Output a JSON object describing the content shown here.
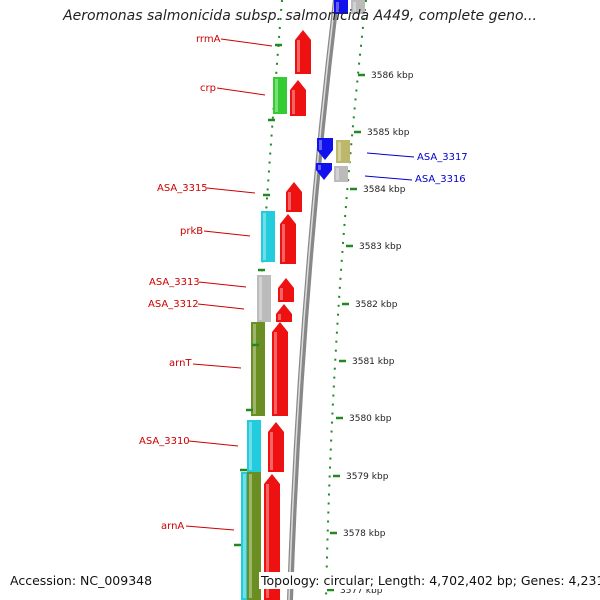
{
  "title": "Aeromonas salmonicida subsp. salmonicida A449, complete geno...",
  "footer": {
    "accession": "Accession: NC_009348",
    "summary": "Topology: circular; Length: 4,702,402 bp; Genes: 4,231"
  },
  "colors": {
    "forward_gene": "#ee1111",
    "forward_label": "#cc0000",
    "reverse_gene": "#1111ee",
    "reverse_label": "#0000cc",
    "tick": "#228822",
    "backbone": "#888888",
    "cyan_feature": "#22ccdd",
    "olive_feature": "#6b8e23",
    "green_feature": "#33cc33",
    "khaki_feature": "#bdb76b",
    "gray_feature": "#bbbbbb"
  },
  "ruler": [
    {
      "label": "3586 kbp"
    },
    {
      "label": "3585 kbp"
    },
    {
      "label": "3584 kbp"
    },
    {
      "label": "3583 kbp"
    },
    {
      "label": "3582 kbp"
    },
    {
      "label": "3581 kbp"
    },
    {
      "label": "3580 kbp"
    },
    {
      "label": "3579 kbp"
    },
    {
      "label": "3578 kbp"
    },
    {
      "label": "3577 kbp"
    }
  ],
  "gene_labels": [
    {
      "text": "rrmA",
      "strand": "forward"
    },
    {
      "text": "crp",
      "strand": "forward"
    },
    {
      "text": "ASA_3315",
      "strand": "forward"
    },
    {
      "text": "prkB",
      "strand": "forward"
    },
    {
      "text": "ASA_3313",
      "strand": "forward"
    },
    {
      "text": "ASA_3312",
      "strand": "forward"
    },
    {
      "text": "arnT",
      "strand": "forward"
    },
    {
      "text": "ASA_3310",
      "strand": "forward"
    },
    {
      "text": "arnA",
      "strand": "forward"
    },
    {
      "text": "ASA_3317",
      "strand": "reverse"
    },
    {
      "text": "ASA_3316",
      "strand": "reverse"
    }
  ]
}
